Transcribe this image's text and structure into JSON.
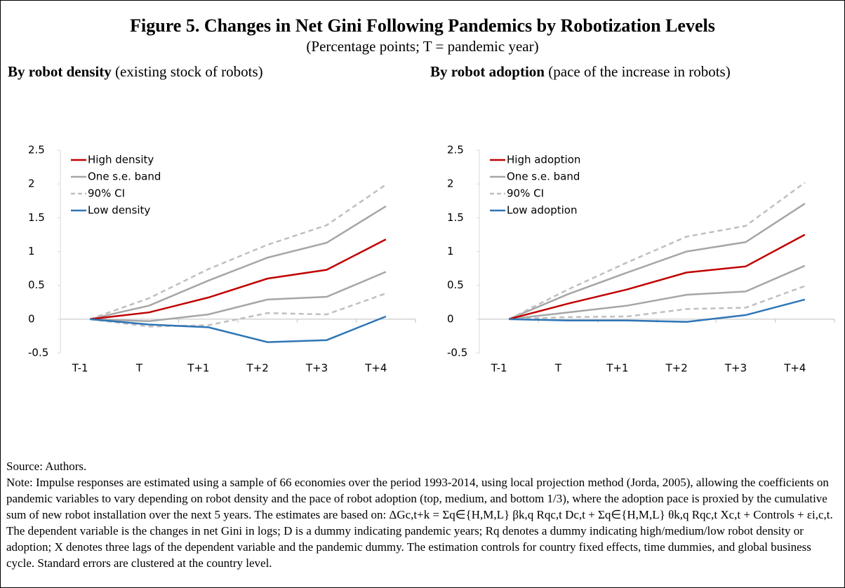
{
  "title": "Figure 5. Changes in Net Gini Following Pandemics by Robotization Levels",
  "subtitle": "(Percentage points; T = pandemic year)",
  "chart_data": [
    {
      "type": "line",
      "title": "By robot density",
      "title_note": "(existing stock of robots)",
      "categories": [
        "T-1",
        "T",
        "T+1",
        "T+2",
        "T+3",
        "T+4"
      ],
      "ylim": [
        -0.5,
        2.5
      ],
      "yticks": [
        -0.5,
        0,
        0.5,
        1,
        1.5,
        2,
        2.5
      ],
      "grid": false,
      "series": [
        {
          "name": "High density",
          "color": "#c00000",
          "values": [
            0,
            0.1,
            0.32,
            0.6,
            0.73,
            1.18
          ]
        },
        {
          "name": "One s.e. band",
          "color": "#a6a6a6",
          "upper": [
            0,
            0.2,
            0.57,
            0.91,
            1.13,
            1.67
          ],
          "lower": [
            0,
            -0.03,
            0.07,
            0.29,
            0.33,
            0.7
          ]
        },
        {
          "name": "90% CI",
          "color": "#bfbfbf",
          "dashed": true,
          "upper": [
            0,
            0.31,
            0.74,
            1.1,
            1.39,
            1.99
          ],
          "lower": [
            0,
            -0.11,
            -0.09,
            0.09,
            0.07,
            0.38
          ]
        },
        {
          "name": "Low density",
          "color": "#2e75b6",
          "values": [
            0,
            -0.08,
            -0.12,
            -0.34,
            -0.31,
            0.04
          ]
        }
      ]
    },
    {
      "type": "line",
      "title": "By robot adoption",
      "title_note": "(pace of the increase in robots)",
      "categories": [
        "T-1",
        "T",
        "T+1",
        "T+2",
        "T+3",
        "T+4"
      ],
      "ylim": [
        -0.5,
        2.5
      ],
      "yticks": [
        -0.5,
        0,
        0.5,
        1,
        1.5,
        2,
        2.5
      ],
      "grid": false,
      "series": [
        {
          "name": "High adoption",
          "color": "#c00000",
          "values": [
            0,
            0.23,
            0.44,
            0.69,
            0.78,
            1.25
          ]
        },
        {
          "name": "One s.e. band",
          "color": "#a6a6a6",
          "upper": [
            0,
            0.37,
            0.69,
            1.0,
            1.14,
            1.71
          ],
          "lower": [
            0,
            0.1,
            0.2,
            0.36,
            0.41,
            0.79
          ]
        },
        {
          "name": "90% CI",
          "color": "#bfbfbf",
          "dashed": true,
          "upper": [
            0,
            0.44,
            0.84,
            1.22,
            1.38,
            2.02
          ],
          "lower": [
            0,
            0.03,
            0.04,
            0.15,
            0.17,
            0.49
          ]
        },
        {
          "name": "Low adoption",
          "color": "#2e75b6",
          "values": [
            0,
            -0.02,
            -0.02,
            -0.04,
            0.06,
            0.29
          ]
        }
      ]
    }
  ],
  "source": "Source: Authors.",
  "note": "Note: Impulse responses are estimated using a sample of 66 economies over the period 1993-2014, using local projection method (Jorda, 2005), allowing the coefficients on pandemic variables to vary depending on robot density and the pace of robot adoption (top, medium, and bottom 1/3), where the adoption pace is proxied by the cumulative sum of new robot installation over the next 5 years. The estimates are based on: ΔGc,t+k = Σq∈{H,M,L} βk,q Rqc,t Dc,t + Σq∈{H,M,L} θk,q Rqc,t Xc,t + Controls + εi,c,t. The dependent variable is the changes in net Gini in logs; D is a dummy indicating pandemic years; Rq denotes a dummy indicating high/medium/low robot density or adoption; X denotes three lags of the dependent variable and the pandemic dummy. The estimation controls for country fixed effects, time dummies, and global business cycle. Standard errors are clustered at the country level."
}
